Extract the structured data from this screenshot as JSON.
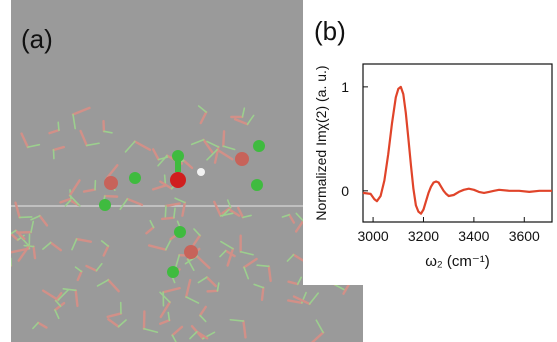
{
  "panels": {
    "a": {
      "label": "(a)"
    },
    "b": {
      "label": "(b)"
    }
  },
  "colors": {
    "simulation_background": "#9a9a9a",
    "oxygen": "#c7635a",
    "highlight_oxygen": "#d01e1e",
    "hydrogen_green": "#3fbb3f",
    "hydrogen_white": "#f2f2f2",
    "spectrum_line": "#e0442a"
  },
  "chart_data": {
    "type": "line",
    "title": "",
    "xlabel": "ω₂ (cm⁻¹)",
    "ylabel": "Normalized Imχ(2) (a. u.)",
    "xlim": [
      2960,
      3710
    ],
    "ylim": [
      -0.3,
      1.22
    ],
    "xticks": [
      3000,
      3200,
      3400,
      3600
    ],
    "yticks": [
      0,
      1
    ],
    "grid": false,
    "series": [
      {
        "name": "",
        "color": "#e0442a",
        "x": [
          2960,
          2990,
          3005,
          3015,
          3030,
          3045,
          3060,
          3075,
          3090,
          3100,
          3110,
          3120,
          3130,
          3140,
          3150,
          3160,
          3170,
          3180,
          3190,
          3200,
          3210,
          3220,
          3230,
          3240,
          3250,
          3260,
          3270,
          3280,
          3290,
          3300,
          3320,
          3340,
          3360,
          3380,
          3400,
          3420,
          3440,
          3460,
          3480,
          3500,
          3540,
          3580,
          3620,
          3660,
          3710
        ],
        "y": [
          -0.02,
          -0.03,
          -0.08,
          -0.1,
          -0.05,
          0.1,
          0.35,
          0.65,
          0.9,
          0.98,
          1.0,
          0.93,
          0.75,
          0.5,
          0.25,
          0.02,
          -0.14,
          -0.2,
          -0.22,
          -0.18,
          -0.1,
          -0.02,
          0.04,
          0.08,
          0.09,
          0.08,
          0.04,
          0.0,
          -0.03,
          -0.05,
          -0.04,
          -0.01,
          0.01,
          0.02,
          0.01,
          -0.01,
          -0.02,
          -0.01,
          0.0,
          0.01,
          0.0,
          0.0,
          -0.01,
          0.0,
          0.0
        ]
      }
    ]
  }
}
